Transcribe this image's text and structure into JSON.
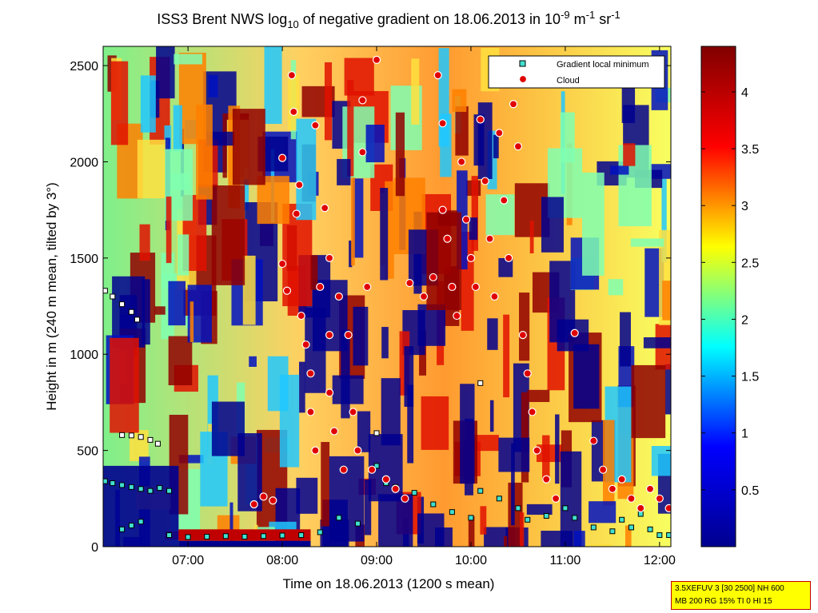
{
  "chart_data": {
    "type": "heatmap",
    "title": {
      "pre": "ISS3 Brent NWS log",
      "sub": "10",
      "mid1": " of negative gradient on 18.06.2013 in 10",
      "sup1": "-9",
      "mid2": " m",
      "sup2": "-1",
      "mid3": " sr",
      "sup3": "-1"
    },
    "xlabel": "Time on 18.06.2013 (1200 s mean)",
    "ylabel": "Height in m (240 m mean, tilted by 3°)",
    "xlim_hours": [
      6.1,
      12.12
    ],
    "ylim": [
      0,
      2600
    ],
    "x_ticks": [
      {
        "value": 7,
        "label": "07:00"
      },
      {
        "value": 8,
        "label": "08:00"
      },
      {
        "value": 9,
        "label": "09:00"
      },
      {
        "value": 10,
        "label": "10:00"
      },
      {
        "value": 11,
        "label": "11:00"
      },
      {
        "value": 12,
        "label": "12:00"
      }
    ],
    "y_ticks": [
      {
        "value": 0,
        "label": "0"
      },
      {
        "value": 500,
        "label": "500"
      },
      {
        "value": 1000,
        "label": "1000"
      },
      {
        "value": 1500,
        "label": "1500"
      },
      {
        "value": 2000,
        "label": "2000"
      },
      {
        "value": 2500,
        "label": "2500"
      }
    ],
    "colorbar": {
      "range": [
        0,
        4.4
      ],
      "colors": [
        "#00008f",
        "#0000ff",
        "#00ffff",
        "#ffff00",
        "#ff0000",
        "#800000"
      ],
      "ticks": [
        {
          "value": 0.5,
          "label": "0.5"
        },
        {
          "value": 1,
          "label": "1"
        },
        {
          "value": 1.5,
          "label": "1.5"
        },
        {
          "value": 2,
          "label": "2"
        },
        {
          "value": 2.5,
          "label": "2.5"
        },
        {
          "value": 3,
          "label": "3"
        },
        {
          "value": 3.5,
          "label": "3.5"
        },
        {
          "value": 4,
          "label": "4"
        }
      ]
    },
    "legend": {
      "position": "top-right",
      "entries": [
        {
          "label": "Gradient local minimum",
          "marker": "square",
          "color": "#40e0d0"
        },
        {
          "label": "Cloud",
          "marker": "circle",
          "color": "#e00000"
        }
      ]
    },
    "series": [
      {
        "marker": "square",
        "points": [
          [
            6.12,
            340
          ],
          [
            6.2,
            330
          ],
          [
            6.3,
            320
          ],
          [
            6.4,
            310
          ],
          [
            6.5,
            300
          ],
          [
            6.6,
            290
          ],
          [
            6.7,
            305
          ],
          [
            6.8,
            290
          ],
          [
            6.3,
            580
          ],
          [
            6.4,
            578
          ],
          [
            6.5,
            570
          ],
          [
            6.6,
            555
          ],
          [
            6.68,
            535
          ],
          [
            6.3,
            90
          ],
          [
            6.4,
            110
          ],
          [
            6.5,
            130
          ],
          [
            6.12,
            1330
          ],
          [
            6.2,
            1300
          ],
          [
            6.3,
            1260
          ],
          [
            6.4,
            1220
          ],
          [
            6.46,
            1180
          ],
          [
            6.8,
            60
          ],
          [
            7.0,
            50
          ],
          [
            7.2,
            52
          ],
          [
            7.4,
            55
          ],
          [
            7.6,
            52
          ],
          [
            7.8,
            55
          ],
          [
            8.0,
            58
          ],
          [
            8.2,
            60
          ],
          [
            8.4,
            75
          ],
          [
            8.6,
            150
          ],
          [
            8.8,
            120
          ],
          [
            9.0,
            590
          ],
          [
            9.0,
            420
          ],
          [
            9.1,
            330
          ],
          [
            9.2,
            310
          ],
          [
            9.4,
            280
          ],
          [
            9.6,
            220
          ],
          [
            9.8,
            180
          ],
          [
            10.0,
            150
          ],
          [
            10.1,
            850
          ],
          [
            10.1,
            290
          ],
          [
            10.3,
            250
          ],
          [
            10.5,
            200
          ],
          [
            10.6,
            140
          ],
          [
            10.8,
            160
          ],
          [
            11.0,
            200
          ],
          [
            11.1,
            150
          ],
          [
            11.3,
            100
          ],
          [
            11.5,
            80
          ],
          [
            11.6,
            140
          ],
          [
            11.7,
            100
          ],
          [
            11.8,
            170
          ],
          [
            11.9,
            90
          ],
          [
            12.0,
            60
          ],
          [
            12.1,
            60
          ]
        ]
      },
      {
        "marker": "circle",
        "points": [
          [
            7.7,
            220
          ],
          [
            7.8,
            260
          ],
          [
            7.9,
            240
          ],
          [
            8.0,
            2020
          ],
          [
            8.0,
            1470
          ],
          [
            8.05,
            1330
          ],
          [
            8.1,
            2450
          ],
          [
            8.12,
            2260
          ],
          [
            8.15,
            1730
          ],
          [
            8.18,
            1880
          ],
          [
            8.2,
            1200
          ],
          [
            8.25,
            1050
          ],
          [
            8.3,
            900
          ],
          [
            8.3,
            700
          ],
          [
            8.35,
            500
          ],
          [
            8.35,
            2190
          ],
          [
            8.4,
            1350
          ],
          [
            8.45,
            1760
          ],
          [
            8.5,
            1500
          ],
          [
            8.5,
            1100
          ],
          [
            8.5,
            800
          ],
          [
            8.55,
            600
          ],
          [
            8.6,
            1300
          ],
          [
            8.65,
            400
          ],
          [
            8.7,
            1100
          ],
          [
            8.75,
            700
          ],
          [
            8.8,
            500
          ],
          [
            8.85,
            2320
          ],
          [
            8.85,
            2050
          ],
          [
            8.9,
            1350
          ],
          [
            8.95,
            400
          ],
          [
            9.0,
            2530
          ],
          [
            9.1,
            350
          ],
          [
            9.2,
            300
          ],
          [
            9.3,
            250
          ],
          [
            9.35,
            1370
          ],
          [
            9.5,
            1300
          ],
          [
            9.6,
            1400
          ],
          [
            9.65,
            2450
          ],
          [
            9.7,
            2200
          ],
          [
            9.7,
            1750
          ],
          [
            9.75,
            1600
          ],
          [
            9.8,
            1350
          ],
          [
            9.85,
            1200
          ],
          [
            9.9,
            2000
          ],
          [
            9.95,
            1700
          ],
          [
            10.0,
            1500
          ],
          [
            10.05,
            1350
          ],
          [
            10.1,
            2220
          ],
          [
            10.15,
            1900
          ],
          [
            10.2,
            1600
          ],
          [
            10.25,
            1300
          ],
          [
            10.3,
            2150
          ],
          [
            10.35,
            1800
          ],
          [
            10.4,
            1500
          ],
          [
            10.45,
            2300
          ],
          [
            10.5,
            2080
          ],
          [
            10.55,
            1100
          ],
          [
            10.6,
            900
          ],
          [
            10.65,
            700
          ],
          [
            10.7,
            500
          ],
          [
            10.8,
            350
          ],
          [
            10.9,
            250
          ],
          [
            11.1,
            1110
          ],
          [
            11.3,
            550
          ],
          [
            11.4,
            400
          ],
          [
            11.5,
            300
          ],
          [
            11.6,
            350
          ],
          [
            11.7,
            250
          ],
          [
            11.8,
            200
          ],
          [
            11.9,
            300
          ],
          [
            12.0,
            250
          ],
          [
            12.1,
            200
          ]
        ]
      }
    ]
  },
  "info_box": {
    "line1": "3.5XEFUV 3 [30 2500] NH 600",
    "line2": "MB 200 RG 15% TI 0 HI 15"
  }
}
